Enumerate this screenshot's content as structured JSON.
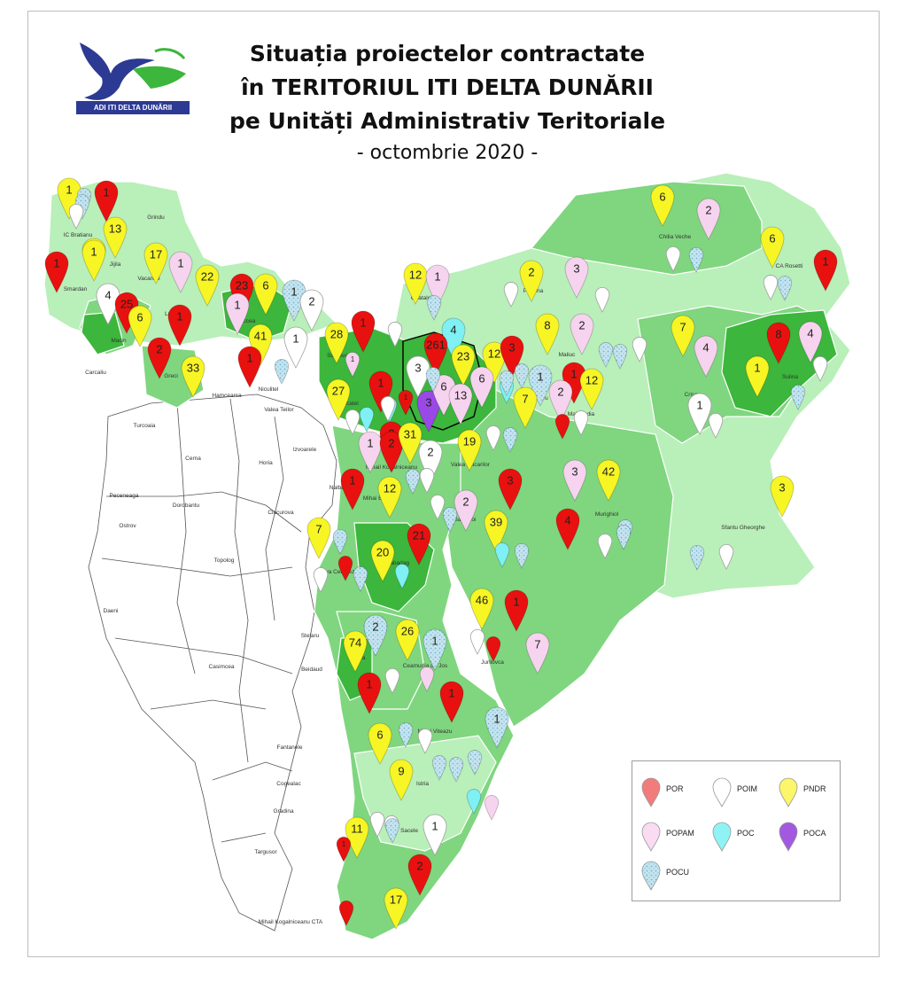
{
  "logo": {
    "text": "ADI ITI DELTA DUNĂRII"
  },
  "title": {
    "line1": "Situația proiectelor contractate",
    "line2": "în TERITORIUL ITI DELTA DUNĂRII",
    "line3": "pe Unități Administrativ Teritoriale",
    "subtitle": "- octombrie 2020 -"
  },
  "legend": {
    "items": [
      {
        "label": "POR",
        "color": "#f27c7c"
      },
      {
        "label": "POIM",
        "color": "#ffffff"
      },
      {
        "label": "PNDR",
        "color": "#fbf66a"
      },
      {
        "label": "POPAM",
        "color": "#f9dcf1"
      },
      {
        "label": "POC",
        "color": "#8ff3f5"
      },
      {
        "label": "POCA",
        "color": "#a259e0"
      },
      {
        "label": "POCU",
        "color": "#c4e4f0"
      }
    ]
  },
  "colors": {
    "POR": "#e8110f",
    "POIM": "#ffffff",
    "PNDR": "#f7f524",
    "POPAM": "#f6d3ee",
    "POC": "#7ff0f4",
    "POCA": "#9b49e6",
    "POCU": "#b5dceb",
    "land_light": "#b9efb9",
    "land_mid": "#7fd67f",
    "land_dark": "#3cb63c",
    "outside": "#ffffff"
  },
  "places": [
    "IC Bratianu",
    "Grindu",
    "Jijila",
    "Smardan",
    "Vacareni",
    "Luncavita",
    "Isaccea",
    "Macin",
    "Greci",
    "Carcaliu",
    "Hamcearca",
    "Niculitel",
    "Valea Teilor",
    "Somova",
    "Ceatalchioi",
    "Pardina",
    "Chilia Veche",
    "CA Rosetti",
    "Maliuc",
    "Crisan",
    "Sulina",
    "Tulcea",
    "Nufaru",
    "Mahmudia",
    "Frecatei",
    "Mihail Kogalniceanu",
    "Izvoarele",
    "Valea Nucarilor",
    "Murighiol",
    "Sfantu Gheorghe",
    "Turcoaia",
    "Cerna",
    "Horia",
    "Nalbant",
    "Mihai Bravu",
    "Sarichioi",
    "Peceneaga",
    "Dorobantu",
    "Ciucurova",
    "Slava Cercheza",
    "Babadag",
    "Ostrov",
    "Topolog",
    "Daeni",
    "Stejaru",
    "Jurilovca",
    "Baia",
    "Ceamurlia de Jos",
    "Casimcea",
    "Beidaud",
    "Mihai Viteazu",
    "Fantanele",
    "Istria",
    "Cogealac",
    "Gradina",
    "Sacele",
    "Targusor",
    "Corbu",
    "Mihail Kogalniceanu CTA"
  ],
  "markers": [
    {
      "t": "PNDR",
      "v": "1"
    },
    {
      "t": "POCU",
      "v": ""
    },
    {
      "t": "POR",
      "v": "1"
    },
    {
      "t": "PNDR",
      "v": "1"
    },
    {
      "t": "POCU",
      "v": ""
    },
    {
      "t": "POIM",
      "v": ""
    },
    {
      "t": "PNDR",
      "v": "13"
    },
    {
      "t": "POR",
      "v": "1"
    },
    {
      "t": "PNDR",
      "v": "1"
    },
    {
      "t": "PNDR",
      "v": "17"
    },
    {
      "t": "POPAM",
      "v": "1"
    },
    {
      "t": "PNDR",
      "v": "22"
    },
    {
      "t": "POR",
      "v": "23"
    },
    {
      "t": "PNDR",
      "v": "6"
    },
    {
      "t": "POCU",
      "v": "1"
    },
    {
      "t": "POIM",
      "v": "2"
    },
    {
      "t": "POPAM",
      "v": "1"
    },
    {
      "t": "POIM",
      "v": "4"
    },
    {
      "t": "POR",
      "v": "25"
    },
    {
      "t": "PNDR",
      "v": "6"
    },
    {
      "t": "POR",
      "v": "1"
    },
    {
      "t": "POR",
      "v": "2"
    },
    {
      "t": "PNDR",
      "v": "33"
    },
    {
      "t": "PNDR",
      "v": "41"
    },
    {
      "t": "POR",
      "v": "1"
    },
    {
      "t": "POIM",
      "v": "1"
    },
    {
      "t": "PNDR",
      "v": "28"
    },
    {
      "t": "POR",
      "v": "1"
    },
    {
      "t": "POPAM",
      "v": "1"
    },
    {
      "t": "POR",
      "v": "1"
    },
    {
      "t": "PNDR",
      "v": "12"
    },
    {
      "t": "POC",
      "v": "4"
    },
    {
      "t": "POR",
      "v": "261"
    },
    {
      "t": "PNDR",
      "v": "23"
    },
    {
      "t": "PNDR",
      "v": "12"
    },
    {
      "t": "POR",
      "v": "3"
    },
    {
      "t": "POIM",
      "v": "3"
    },
    {
      "t": "POPAM",
      "v": "1"
    },
    {
      "t": "POCU",
      "v": "1"
    },
    {
      "t": "POR",
      "v": "1"
    },
    {
      "t": "PNDR",
      "v": "12"
    },
    {
      "t": "PNDR",
      "v": "27"
    },
    {
      "t": "POR",
      "v": "1"
    },
    {
      "t": "POCA",
      "v": "3"
    },
    {
      "t": "POPAM",
      "v": "6"
    },
    {
      "t": "POPAM",
      "v": "13"
    },
    {
      "t": "PNDR",
      "v": "7"
    },
    {
      "t": "POPAM",
      "v": "2"
    },
    {
      "t": "POR",
      "v": "2"
    },
    {
      "t": "POPAM",
      "v": "6"
    },
    {
      "t": "PNDR",
      "v": "2"
    },
    {
      "t": "PNDR",
      "v": "6"
    },
    {
      "t": "POPAM",
      "v": "2"
    },
    {
      "t": "PNDR",
      "v": "6"
    },
    {
      "t": "POPAM",
      "v": "3"
    },
    {
      "t": "PNDR",
      "v": "8"
    },
    {
      "t": "POPAM",
      "v": "2"
    },
    {
      "t": "PNDR",
      "v": "7"
    },
    {
      "t": "POPAM",
      "v": "4"
    },
    {
      "t": "POR",
      "v": "8"
    },
    {
      "t": "POPAM",
      "v": "4"
    },
    {
      "t": "POR",
      "v": "1"
    },
    {
      "t": "PNDR",
      "v": "1"
    },
    {
      "t": "POIM",
      "v": "1"
    },
    {
      "t": "POPAM",
      "v": "1"
    },
    {
      "t": "POR",
      "v": "2"
    },
    {
      "t": "PNDR",
      "v": "31"
    },
    {
      "t": "POIM",
      "v": "2"
    },
    {
      "t": "PNDR",
      "v": "19"
    },
    {
      "t": "POR",
      "v": "3"
    },
    {
      "t": "POPAM",
      "v": "3"
    },
    {
      "t": "PNDR",
      "v": "42"
    },
    {
      "t": "POR",
      "v": "4"
    },
    {
      "t": "PNDR",
      "v": "3"
    },
    {
      "t": "POR",
      "v": "1"
    },
    {
      "t": "PNDR",
      "v": "12"
    },
    {
      "t": "POPAM",
      "v": "2"
    },
    {
      "t": "PNDR",
      "v": "39"
    },
    {
      "t": "PNDR",
      "v": "7"
    },
    {
      "t": "PNDR",
      "v": "20"
    },
    {
      "t": "POR",
      "v": "21"
    },
    {
      "t": "PNDR",
      "v": "46"
    },
    {
      "t": "POR",
      "v": "1"
    },
    {
      "t": "POPAM",
      "v": "7"
    },
    {
      "t": "POCU",
      "v": "2"
    },
    {
      "t": "PNDR",
      "v": "26"
    },
    {
      "t": "POCU",
      "v": "1"
    },
    {
      "t": "PNDR",
      "v": "74"
    },
    {
      "t": "POR",
      "v": "1"
    },
    {
      "t": "POR",
      "v": "1"
    },
    {
      "t": "POCU",
      "v": "1"
    },
    {
      "t": "PNDR",
      "v": "6"
    },
    {
      "t": "PNDR",
      "v": "9"
    },
    {
      "t": "PNDR",
      "v": "11"
    },
    {
      "t": "POIM",
      "v": "1"
    },
    {
      "t": "POR",
      "v": "2"
    },
    {
      "t": "PNDR",
      "v": "17"
    },
    {
      "t": "POR",
      "v": "1"
    },
    {
      "t": "POIM",
      "v": ""
    },
    {
      "t": "POCU",
      "v": ""
    },
    {
      "t": "POIM",
      "v": ""
    },
    {
      "t": "POCU",
      "v": ""
    },
    {
      "t": "POIM",
      "v": ""
    },
    {
      "t": "POCU",
      "v": ""
    },
    {
      "t": "POIM",
      "v": ""
    },
    {
      "t": "POCU",
      "v": ""
    },
    {
      "t": "POIM",
      "v": ""
    },
    {
      "t": "POCU",
      "v": ""
    },
    {
      "t": "POIM",
      "v": ""
    },
    {
      "t": "POCU",
      "v": ""
    },
    {
      "t": "POIM",
      "v": ""
    },
    {
      "t": "POCU",
      "v": ""
    },
    {
      "t": "POIM",
      "v": ""
    },
    {
      "t": "POCU",
      "v": ""
    },
    {
      "t": "POC",
      "v": ""
    },
    {
      "t": "POCU",
      "v": ""
    },
    {
      "t": "POC",
      "v": ""
    },
    {
      "t": "POCU",
      "v": ""
    },
    {
      "t": "POIM",
      "v": ""
    },
    {
      "t": "POCU",
      "v": ""
    },
    {
      "t": "POC",
      "v": ""
    },
    {
      "t": "POCU",
      "v": ""
    },
    {
      "t": "POIM",
      "v": ""
    },
    {
      "t": "POR",
      "v": ""
    },
    {
      "t": "POIM",
      "v": ""
    },
    {
      "t": "POCU",
      "v": ""
    },
    {
      "t": "POC",
      "v": ""
    },
    {
      "t": "POCU",
      "v": ""
    },
    {
      "t": "POIM",
      "v": ""
    },
    {
      "t": "POCU",
      "v": ""
    },
    {
      "t": "POIM",
      "v": ""
    },
    {
      "t": "POR",
      "v": ""
    },
    {
      "t": "POIM",
      "v": ""
    },
    {
      "t": "POCU",
      "v": ""
    },
    {
      "t": "POIM",
      "v": ""
    },
    {
      "t": "POCU",
      "v": ""
    },
    {
      "t": "POIM",
      "v": ""
    },
    {
      "t": "POR",
      "v": ""
    },
    {
      "t": "POIM",
      "v": ""
    },
    {
      "t": "POCU",
      "v": ""
    },
    {
      "t": "POPAM",
      "v": ""
    },
    {
      "t": "POPAM",
      "v": ""
    },
    {
      "t": "POC",
      "v": ""
    },
    {
      "t": "POCU",
      "v": ""
    },
    {
      "t": "POIM",
      "v": ""
    },
    {
      "t": "POR",
      "v": ""
    },
    {
      "t": "POIM",
      "v": ""
    },
    {
      "t": "POCU",
      "v": ""
    },
    {
      "t": "POIM",
      "v": ""
    },
    {
      "t": "POCU",
      "v": ""
    },
    {
      "t": "POC",
      "v": ""
    },
    {
      "t": "POCU",
      "v": ""
    },
    {
      "t": "POIM",
      "v": ""
    },
    {
      "t": "POCU",
      "v": ""
    },
    {
      "t": "POIM",
      "v": ""
    },
    {
      "t": "POCU",
      "v": ""
    }
  ]
}
